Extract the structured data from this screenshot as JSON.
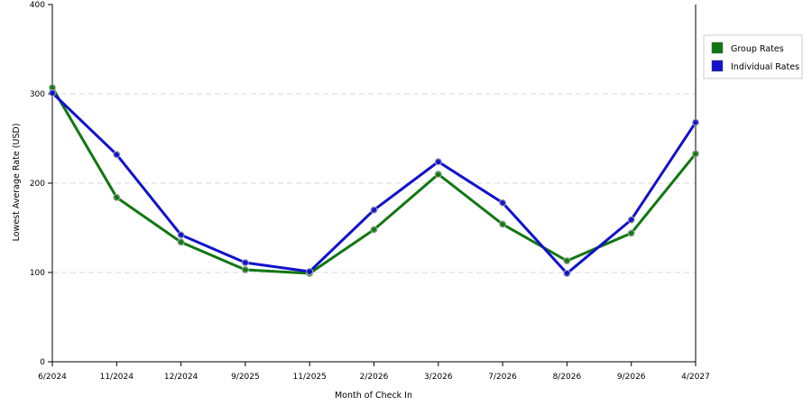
{
  "chart_data": {
    "type": "line",
    "title": "",
    "xlabel": "Month of Check In",
    "ylabel": "Lowest Average Rate (USD)",
    "categories": [
      "6/2024",
      "11/2024",
      "12/2024",
      "9/2025",
      "11/2025",
      "2/2026",
      "3/2026",
      "7/2026",
      "8/2026",
      "9/2026",
      "4/2027"
    ],
    "ylim": [
      0,
      400
    ],
    "yticks": [
      0,
      100,
      200,
      300,
      400
    ],
    "grid": "horizontal-dashed",
    "legend_position": "right",
    "series": [
      {
        "name": "Group Rates",
        "color": "#117711",
        "values": [
          307,
          184,
          134,
          103,
          99,
          148,
          210,
          154,
          113,
          144,
          233
        ]
      },
      {
        "name": "Individual Rates",
        "color": "#1111cc",
        "values": [
          301,
          232,
          142,
          111,
          101,
          170,
          224,
          178,
          99,
          159,
          268
        ]
      }
    ]
  }
}
